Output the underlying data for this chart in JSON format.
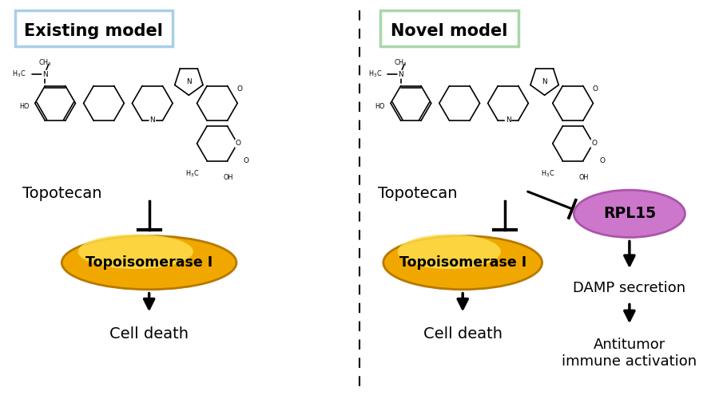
{
  "bg_color": "#ffffff",
  "left_panel_title": "Existing model",
  "right_panel_title": "Novel model",
  "left_box_color": "#a8d0e8",
  "right_box_color": "#a8d8a8",
  "ellipse_color_grad1": "#f5c800",
  "ellipse_color_grad2": "#fde87a",
  "ellipse_edge_color": "#d4a800",
  "rpl15_color": "#cc77cc",
  "rpl15_edge_color": "#aa55aa",
  "topoisomerase_label": "Topoisomerase I",
  "topotecan_label": "Topotecan",
  "cell_death_label": "Cell death",
  "rpl15_label": "RPL15",
  "damp_label": "DAMP secretion",
  "antitumor_label": "Antitumor\nimmune activation"
}
